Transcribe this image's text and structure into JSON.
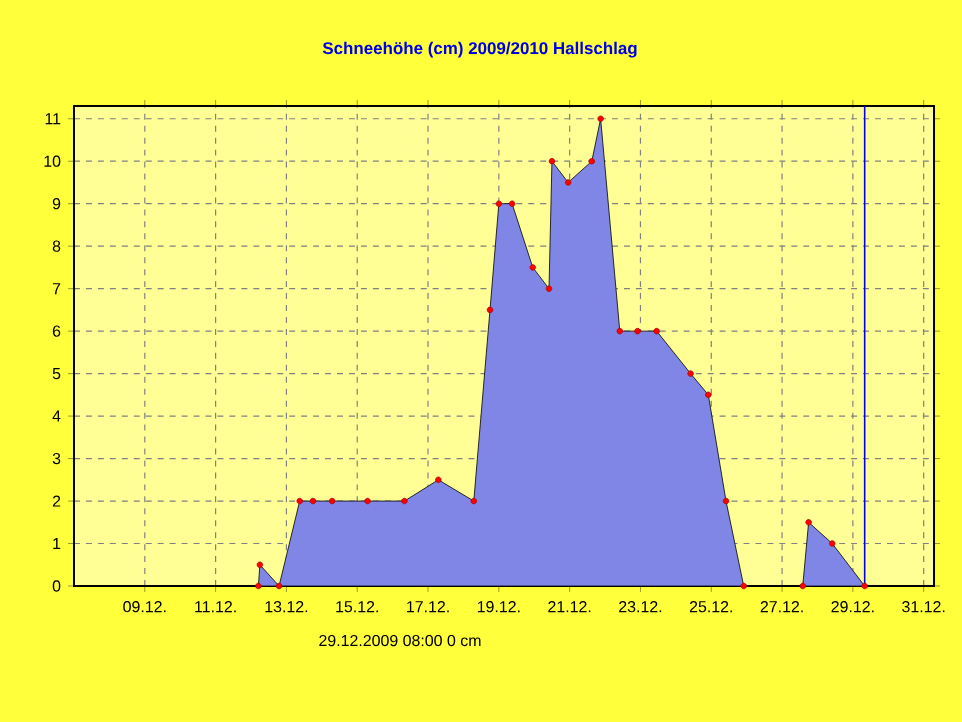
{
  "chart_data": {
    "type": "area",
    "title": "Schneehöhe (cm)  2009/2010      Hallschlag",
    "x": [
      "2009-12-12T05:00",
      "2009-12-12T06:00",
      "2009-12-12T19:00",
      "2009-12-13T09:00",
      "2009-12-13T18:00",
      "2009-12-14T07:00",
      "2009-12-15T07:00",
      "2009-12-16T08:00",
      "2009-12-17T07:00",
      "2009-12-18T07:00",
      "2009-12-18T18:00",
      "2009-12-19T00:00",
      "2009-12-19T09:00",
      "2009-12-19T23:00",
      "2009-12-20T10:00",
      "2009-12-20T12:00",
      "2009-12-20T23:00",
      "2009-12-21T15:00",
      "2009-12-21T21:00",
      "2009-12-22T10:00",
      "2009-12-22T22:00",
      "2009-12-23T11:00",
      "2009-12-24T10:00",
      "2009-12-24T22:00",
      "2009-12-25T10:00",
      "2009-12-25T22:00",
      "2009-12-27T14:00",
      "2009-12-27T18:00",
      "2009-12-28T10:00",
      "2009-12-29T08:00"
    ],
    "series": [
      {
        "color": "#7f86e6",
        "values": [
          0,
          0.5,
          0,
          2,
          2,
          2,
          2,
          2,
          2.5,
          2,
          6.5,
          9,
          9,
          7.5,
          7,
          10,
          9.5,
          10,
          11,
          6,
          6,
          6,
          5,
          4.5,
          2,
          0,
          0,
          1.5,
          1,
          0
        ]
      }
    ],
    "xlim": [
      "2009-12-07",
      "2009-12-31T07:00"
    ],
    "xticks": [
      {
        "value": "2009-12-09",
        "label": "09.12."
      },
      {
        "value": "2009-12-11",
        "label": "11.12."
      },
      {
        "value": "2009-12-13",
        "label": "13.12."
      },
      {
        "value": "2009-12-15",
        "label": "15.12."
      },
      {
        "value": "2009-12-17",
        "label": "17.12."
      },
      {
        "value": "2009-12-19",
        "label": "19.12."
      },
      {
        "value": "2009-12-21",
        "label": "21.12."
      },
      {
        "value": "2009-12-23",
        "label": "23.12."
      },
      {
        "value": "2009-12-25",
        "label": "25.12."
      },
      {
        "value": "2009-12-27",
        "label": "27.12."
      },
      {
        "value": "2009-12-29",
        "label": "29.12."
      },
      {
        "value": "2009-12-31",
        "label": "31.12."
      }
    ],
    "ylim": [
      0,
      11.3
    ],
    "yticks": [
      0,
      1,
      2,
      3,
      4,
      5,
      6,
      7,
      8,
      9,
      10,
      11
    ],
    "grid": true,
    "marker": "circle",
    "ref_lines": [
      {
        "axis": "x",
        "value": "2009-12-29T08:00",
        "color": "#0000ff"
      }
    ],
    "annotations": [
      "29.12.2009  08:00    0 cm"
    ]
  }
}
